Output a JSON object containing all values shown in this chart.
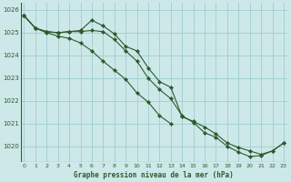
{
  "title": "Graphe pression niveau de la mer (hPa)",
  "bg_color": "#cde8e8",
  "grid_color": "#9ecece",
  "line_color": "#2d5a2d",
  "ylim": [
    1019.3,
    1026.3
  ],
  "xlim": [
    -0.3,
    23.3
  ],
  "yticks": [
    1020,
    1021,
    1022,
    1023,
    1024,
    1025,
    1026
  ],
  "xticks": [
    0,
    1,
    2,
    3,
    4,
    5,
    6,
    7,
    8,
    9,
    10,
    11,
    12,
    13,
    14,
    15,
    16,
    17,
    18,
    19,
    20,
    21,
    22,
    23
  ],
  "series1_x": [
    0,
    1,
    2,
    3,
    4,
    5,
    6,
    7,
    8,
    9,
    10,
    11,
    12,
    13,
    14,
    15,
    16,
    17,
    18,
    19,
    20,
    21,
    22,
    23
  ],
  "series1_y": [
    1025.75,
    1025.2,
    1025.05,
    1025.0,
    1025.05,
    1025.1,
    1025.55,
    1025.3,
    1024.95,
    1024.4,
    1024.2,
    1023.45,
    1022.85,
    1022.6,
    1021.3,
    1021.1,
    1020.85,
    1020.55,
    1020.15,
    1019.95,
    1019.8,
    1019.65,
    1019.8,
    1020.15
  ],
  "series2_x": [
    0,
    1,
    2,
    3,
    4,
    5,
    6,
    7,
    8,
    9,
    10,
    11,
    12,
    13,
    14,
    15,
    16,
    17,
    18,
    19,
    20,
    21,
    22,
    23
  ],
  "series2_y": [
    1025.75,
    1025.2,
    1025.05,
    1025.0,
    1025.05,
    1025.05,
    1025.1,
    1025.05,
    1024.7,
    1024.2,
    1023.75,
    1023.0,
    1022.5,
    1022.1,
    1021.35,
    1021.05,
    1020.6,
    1020.4,
    1020.0,
    1019.75,
    1019.55,
    1019.6,
    1019.8,
    1020.15
  ],
  "series3_x": [
    0,
    1,
    2,
    3,
    4,
    5,
    6,
    7,
    8,
    9,
    10,
    11,
    12,
    13
  ],
  "series3_y": [
    1025.75,
    1025.2,
    1025.0,
    1024.85,
    1024.75,
    1024.55,
    1024.2,
    1023.75,
    1023.35,
    1022.95,
    1022.35,
    1021.95,
    1021.35,
    1021.0
  ]
}
